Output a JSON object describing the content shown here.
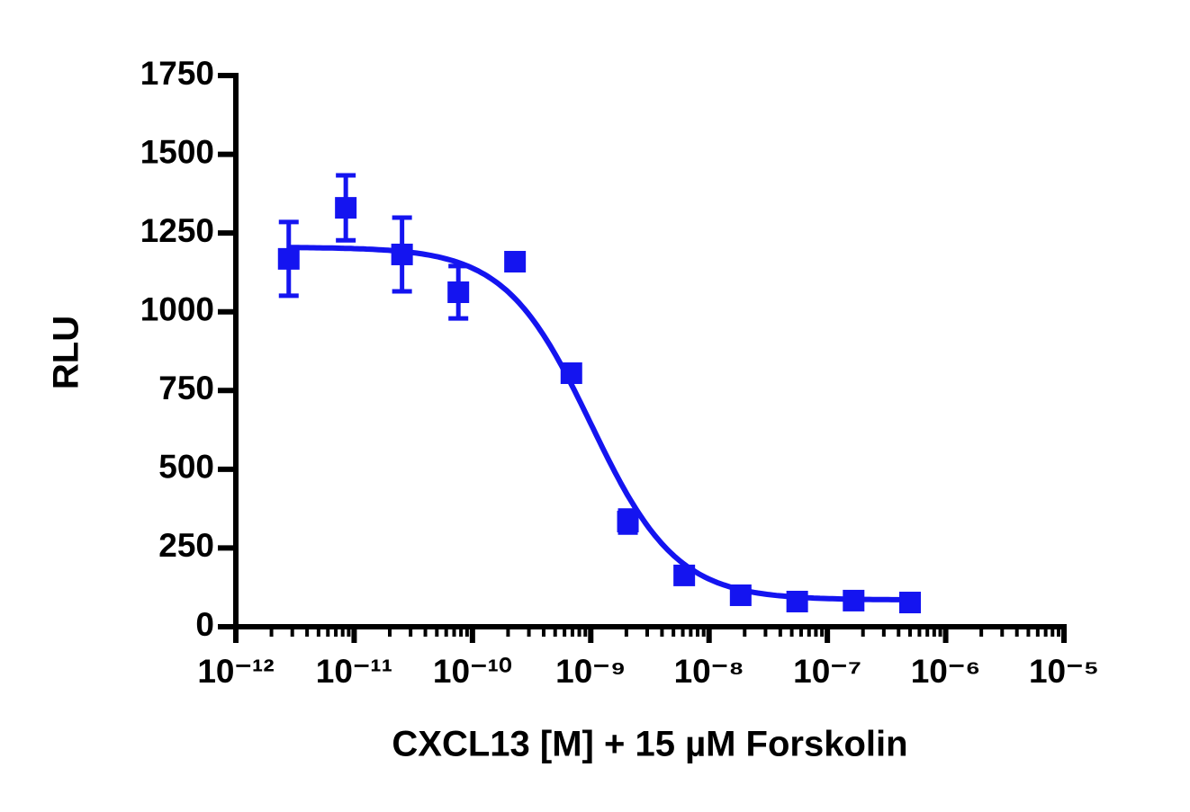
{
  "chart_data": {
    "type": "dose-response",
    "x_label": "CXCL13 [M] + 15 µM Forskolin",
    "y_label": "RLU",
    "log_x": true,
    "minor_ticks": true,
    "xlim": [
      1e-12,
      1e-05
    ],
    "xticks": [
      {
        "value": 1e-12,
        "label": "10⁻¹²"
      },
      {
        "value": 1e-11,
        "label": "10⁻¹¹"
      },
      {
        "value": 1e-10,
        "label": "10⁻¹⁰"
      },
      {
        "value": 1e-09,
        "label": "10⁻⁹"
      },
      {
        "value": 1e-08,
        "label": "10⁻⁸"
      },
      {
        "value": 1e-07,
        "label": "10⁻⁷"
      },
      {
        "value": 1e-06,
        "label": "10⁻⁶"
      },
      {
        "value": 1e-05,
        "label": "10⁻⁵"
      }
    ],
    "ylim": [
      0,
      1750
    ],
    "yticks": [
      0,
      250,
      500,
      750,
      1000,
      1250,
      1500,
      1750
    ],
    "series": [
      {
        "color": "#1414f0",
        "x": [
          2.8e-12,
          8.5e-12,
          2.54e-11,
          7.6e-11,
          2.29e-10,
          6.86e-10,
          2.06e-09,
          6.17e-09,
          1.85e-08,
          5.56e-08,
          1.667e-07,
          5e-07
        ],
        "values": [
          1168,
          1330,
          1182,
          1062,
          1159,
          805,
          334,
          163,
          100,
          80,
          83,
          77
        ],
        "errors": [
          117,
          103,
          117,
          83,
          20,
          15,
          35,
          10,
          5,
          5,
          5,
          5
        ]
      }
    ],
    "fit": {
      "top": 1205,
      "bottom": 85,
      "log_ec50": -9.0,
      "hill": 1.2
    }
  }
}
